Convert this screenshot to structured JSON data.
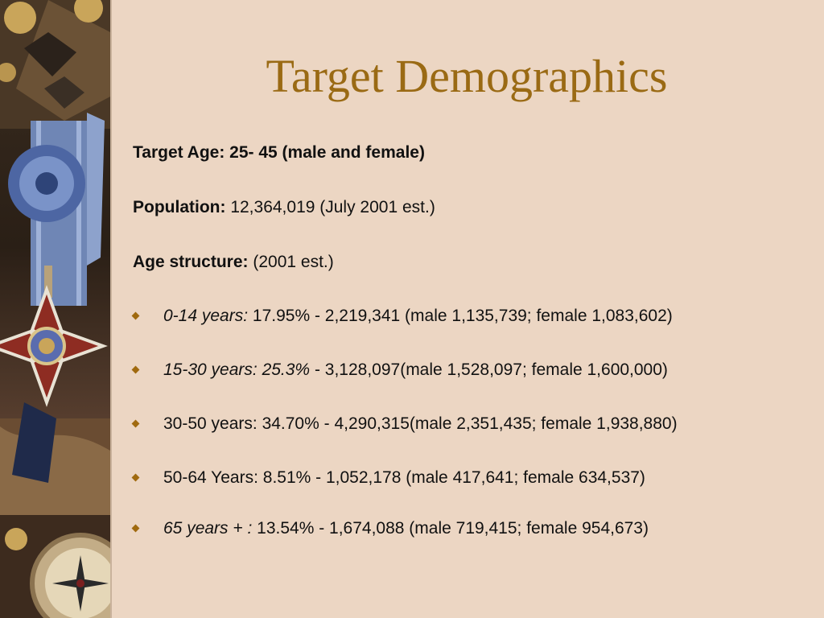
{
  "slide": {
    "title": "Target Demographics",
    "target_age": "Target Age: 25- 45 (male and female)",
    "population_label": "Population:",
    "population_value": " 12,364,019 (July 2001 est.)",
    "age_structure_label": "Age structure:",
    "age_structure_value": "  (2001 est.)",
    "bullets": [
      {
        "italic": "0-14 years:",
        "plain": " 17.95% - 2,219,341 (male 1,135,739; female 1,083,602)"
      },
      {
        "italic": "15-30 years: 25.3%",
        "plain": " - 3,128,097(male 1,528,097; female 1,600,000)"
      },
      {
        "italic": "",
        "plain": "30-50 years: 34.70% - 4,290,315(male 2,351,435; female 1,938,880)"
      },
      {
        "italic": "",
        "plain": "50-64 Years: 8.51% - 1,052,178 (male 417,641; female 634,537)"
      },
      {
        "italic": "65 years + :",
        "plain": " 13.54% - 1,674,088 (male 719,415; female 954,673)"
      }
    ]
  },
  "colors": {
    "background": "#ecd6c3",
    "title": "#9a6a14",
    "bullet": "#a06a0f",
    "text": "#111111"
  },
  "icons": {
    "bullet": "diamond-bullet-icon"
  }
}
